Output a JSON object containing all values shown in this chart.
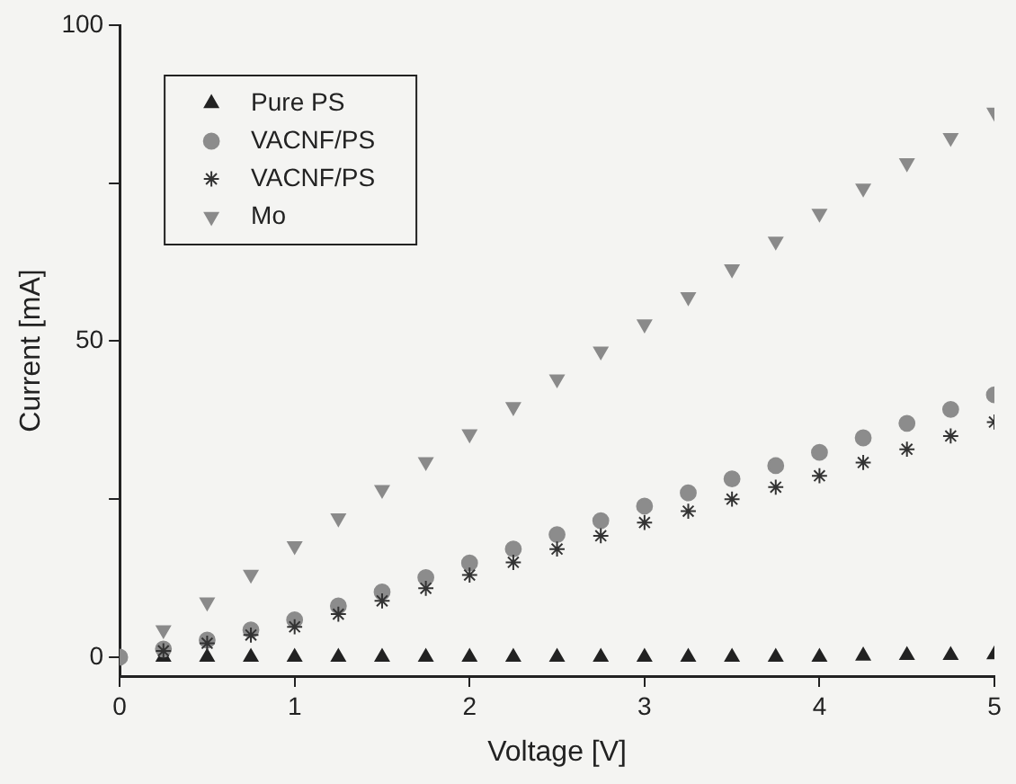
{
  "chart_data": {
    "type": "scatter",
    "xlabel": "Voltage [V]",
    "ylabel": "Current [mA]",
    "x": [
      0,
      0.25,
      0.5,
      0.75,
      1,
      1.25,
      1.5,
      1.75,
      2,
      2.25,
      2.5,
      2.75,
      3,
      3.25,
      3.5,
      3.75,
      4,
      4.25,
      4.5,
      4.75,
      5
    ],
    "series": [
      {
        "name": "Pure PS",
        "color": "#222222",
        "marker": "triangle",
        "values": [
          null,
          0,
          0,
          0,
          0,
          0,
          0,
          0,
          0,
          0,
          0,
          0,
          0,
          0,
          0,
          0,
          0,
          0.2,
          0.3,
          0.3,
          0.4
        ]
      },
      {
        "name": "VACNF/PS",
        "color": "#8c8c8c",
        "marker": "circle",
        "values": [
          0,
          1.3,
          2.7,
          4.3,
          5.9,
          8.1,
          10.3,
          12.6,
          14.9,
          17.1,
          19.4,
          21.6,
          23.9,
          26,
          28.2,
          30.3,
          32.4,
          34.7,
          37,
          39.2,
          41.5
        ]
      },
      {
        "name": "VACNF/PS",
        "color": "#333333",
        "marker": "cross",
        "values": [
          null,
          1,
          2.2,
          3.5,
          4.8,
          6.8,
          8.9,
          10.9,
          13,
          15,
          17.1,
          19.2,
          21.3,
          23.1,
          25,
          26.9,
          28.7,
          30.8,
          32.9,
          35,
          37.2
        ]
      },
      {
        "name": "Mo",
        "color": "#8a8a8a",
        "marker": "triangle_down",
        "values": [
          null,
          4.3,
          8.7,
          13.1,
          17.6,
          22,
          26.5,
          30.9,
          35.3,
          39.6,
          44,
          48.4,
          52.7,
          57,
          61.4,
          65.8,
          70.2,
          74.2,
          78.2,
          82.2,
          86.2
        ]
      }
    ],
    "xlim": [
      0,
      5
    ],
    "xticks": [
      0,
      1,
      2,
      3,
      4,
      5
    ],
    "ylim": [
      -3,
      100
    ],
    "yticks": [
      0,
      {
        "value": 25,
        "label": null
      },
      50,
      {
        "value": 75,
        "label": null
      },
      100
    ],
    "grid": false,
    "legend": "top left"
  }
}
